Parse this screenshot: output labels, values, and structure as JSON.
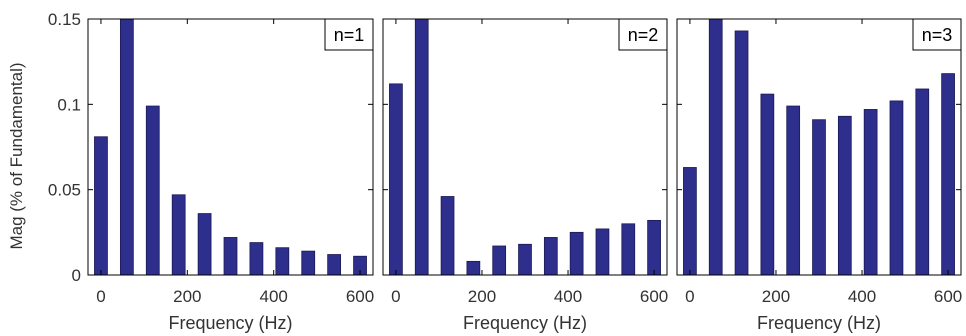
{
  "ylabel": "Mag (% of Fundamental)",
  "colors": {
    "bar": "#2e2f8c",
    "bar_stroke": "#1a1a55",
    "axis": "#000000",
    "text": "#333333"
  },
  "chart_data": [
    {
      "type": "bar",
      "annotation": "n=1",
      "xlabel": "Frequency (Hz)",
      "ylabel": "Mag (% of Fundamental)",
      "xlim": [
        -30,
        630
      ],
      "ylim": [
        0,
        0.15
      ],
      "x_ticks": [
        0,
        200,
        400,
        600
      ],
      "y_ticks": [
        0,
        0.05,
        0.1,
        0.15
      ],
      "y_tick_labels": [
        "0",
        "0.05",
        "0.1",
        "0.15"
      ],
      "bar_width": 30,
      "x": [
        0,
        60,
        120,
        180,
        240,
        300,
        360,
        420,
        480,
        540,
        600
      ],
      "values": [
        0.081,
        0.155,
        0.099,
        0.047,
        0.036,
        0.022,
        0.019,
        0.016,
        0.014,
        0.012,
        0.011
      ]
    },
    {
      "type": "bar",
      "annotation": "n=2",
      "xlabel": "Frequency (Hz)",
      "xlim": [
        -30,
        630
      ],
      "ylim": [
        0,
        0.15
      ],
      "x_ticks": [
        0,
        200,
        400,
        600
      ],
      "y_ticks": [
        0,
        0.05,
        0.1,
        0.15
      ],
      "bar_width": 30,
      "x": [
        0,
        60,
        120,
        180,
        240,
        300,
        360,
        420,
        480,
        540,
        600
      ],
      "values": [
        0.112,
        0.155,
        0.046,
        0.008,
        0.017,
        0.018,
        0.022,
        0.025,
        0.027,
        0.03,
        0.032
      ]
    },
    {
      "type": "bar",
      "annotation": "n=3",
      "xlabel": "Frequency (Hz)",
      "xlim": [
        -30,
        630
      ],
      "ylim": [
        0,
        0.15
      ],
      "x_ticks": [
        0,
        200,
        400,
        600
      ],
      "y_ticks": [
        0,
        0.05,
        0.1,
        0.15
      ],
      "bar_width": 30,
      "x": [
        0,
        60,
        120,
        180,
        240,
        300,
        360,
        420,
        480,
        540,
        600
      ],
      "values": [
        0.063,
        0.155,
        0.143,
        0.106,
        0.099,
        0.091,
        0.093,
        0.097,
        0.102,
        0.109,
        0.118
      ]
    }
  ]
}
